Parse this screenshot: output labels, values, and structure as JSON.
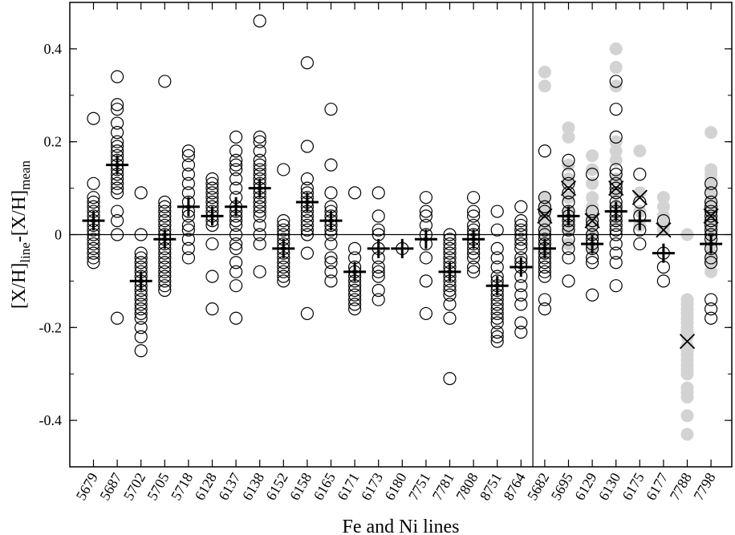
{
  "chart_data": {
    "type": "scatter",
    "xlabel": "Fe and Ni lines",
    "ylabel": {
      "main": "[X/H]",
      "sub1": "line",
      "mid": "-[X/H]",
      "sub2": "mean"
    },
    "ylim": [
      -0.5,
      0.5
    ],
    "yticks": [
      -0.4,
      -0.2,
      0,
      0.2,
      0.4
    ],
    "ytick_labels": [
      "-0.4",
      "-0.2",
      "0",
      "0.2",
      "0.4"
    ],
    "categories": [
      "5679",
      "5687",
      "5702",
      "5705",
      "5718",
      "6128",
      "6137",
      "6138",
      "6152",
      "6158",
      "6165",
      "6171",
      "6173",
      "6180",
      "7751",
      "7781",
      "7808",
      "8751",
      "8764",
      "5682",
      "5695",
      "6129",
      "6130",
      "6175",
      "6177",
      "7788",
      "7798"
    ],
    "separator_after_index": 18,
    "horizontal_zero_line": true,
    "colors": {
      "open_circle": "#000000",
      "grey_dot": "#d3d3d3",
      "mean_cross": "#000000",
      "x_marker": "#000000"
    },
    "series": [
      {
        "marker": "open-circle",
        "points": [
          [
            0,
            [
              0.25,
              0.11,
              0.08,
              0.07,
              0.06,
              0.05,
              0.04,
              0.03,
              0.02,
              0.01,
              0.0,
              -0.01,
              -0.02,
              -0.03,
              -0.04,
              -0.05,
              -0.06
            ]
          ],
          [
            1,
            [
              0.34,
              0.28,
              0.27,
              0.24,
              0.22,
              0.2,
              0.19,
              0.18,
              0.17,
              0.16,
              0.15,
              0.14,
              0.13,
              0.12,
              0.11,
              0.1,
              0.09,
              0.05,
              0.03,
              0.0,
              -0.18
            ]
          ],
          [
            2,
            [
              0.09,
              0.0,
              -0.04,
              -0.05,
              -0.06,
              -0.07,
              -0.08,
              -0.09,
              -0.1,
              -0.11,
              -0.12,
              -0.13,
              -0.14,
              -0.15,
              -0.16,
              -0.17,
              -0.18,
              -0.2,
              -0.22,
              -0.25
            ]
          ],
          [
            3,
            [
              0.33,
              0.07,
              0.06,
              0.05,
              0.04,
              0.03,
              0.02,
              0.01,
              0.0,
              -0.01,
              -0.02,
              -0.03,
              -0.04,
              -0.05,
              -0.06,
              -0.07,
              -0.08,
              -0.09,
              -0.1,
              -0.11,
              -0.12
            ]
          ],
          [
            4,
            [
              0.18,
              0.17,
              0.15,
              0.13,
              0.11,
              0.09,
              0.07,
              0.05,
              0.04,
              0.02,
              0.01,
              -0.01,
              -0.03,
              -0.05
            ]
          ],
          [
            5,
            [
              0.12,
              0.11,
              0.1,
              0.09,
              0.08,
              0.07,
              0.06,
              0.05,
              0.04,
              0.03,
              0.02,
              -0.02,
              -0.09,
              -0.16
            ]
          ],
          [
            6,
            [
              0.21,
              0.18,
              0.16,
              0.15,
              0.14,
              0.12,
              0.1,
              0.08,
              0.06,
              0.05,
              0.04,
              0.03,
              0.02,
              0.0,
              -0.02,
              -0.03,
              -0.06,
              -0.08,
              -0.11,
              -0.18
            ]
          ],
          [
            7,
            [
              0.46,
              0.21,
              0.2,
              0.18,
              0.16,
              0.15,
              0.14,
              0.13,
              0.12,
              0.11,
              0.1,
              0.09,
              0.08,
              0.07,
              0.06,
              0.05,
              0.04,
              0.02,
              0.0,
              -0.02,
              -0.08
            ]
          ],
          [
            8,
            [
              0.14,
              0.03,
              0.02,
              0.01,
              0.0,
              -0.01,
              -0.02,
              -0.03,
              -0.04,
              -0.05,
              -0.06,
              -0.07,
              -0.08,
              -0.09,
              -0.1
            ]
          ],
          [
            9,
            [
              0.37,
              0.19,
              0.12,
              0.1,
              0.09,
              0.08,
              0.07,
              0.06,
              0.05,
              0.04,
              0.03,
              0.02,
              0.01,
              0.0,
              -0.04,
              -0.17
            ]
          ],
          [
            10,
            [
              0.27,
              0.15,
              0.09,
              0.06,
              0.05,
              0.04,
              0.03,
              0.02,
              0.01,
              0.0,
              -0.02,
              -0.05,
              -0.06,
              -0.08,
              -0.1
            ]
          ],
          [
            11,
            [
              0.09,
              -0.03,
              -0.05,
              -0.07,
              -0.08,
              -0.09,
              -0.1,
              -0.11,
              -0.12,
              -0.13,
              -0.14,
              -0.15,
              -0.16
            ]
          ],
          [
            12,
            [
              0.09,
              0.04,
              0.01,
              0.0,
              -0.03,
              -0.05,
              -0.07,
              -0.08,
              -0.09,
              -0.12,
              -0.14
            ]
          ],
          [
            13,
            [
              -0.03
            ]
          ],
          [
            14,
            [
              0.08,
              0.05,
              0.04,
              0.02,
              0.0,
              -0.02,
              -0.05,
              -0.1,
              -0.17
            ]
          ],
          [
            15,
            [
              0.0,
              -0.01,
              -0.02,
              -0.03,
              -0.04,
              -0.05,
              -0.06,
              -0.07,
              -0.08,
              -0.09,
              -0.1,
              -0.11,
              -0.12,
              -0.13,
              -0.15,
              -0.18,
              -0.31
            ]
          ],
          [
            16,
            [
              0.08,
              0.05,
              0.04,
              0.02,
              0.01,
              0.0,
              -0.01,
              -0.02,
              -0.03,
              -0.04,
              -0.05,
              -0.07,
              -0.08
            ]
          ],
          [
            17,
            [
              0.05,
              0.01,
              -0.03,
              -0.05,
              -0.07,
              -0.09,
              -0.1,
              -0.11,
              -0.12,
              -0.13,
              -0.14,
              -0.15,
              -0.16,
              -0.17,
              -0.18,
              -0.19,
              -0.21,
              -0.22,
              -0.23
            ]
          ],
          [
            18,
            [
              0.06,
              0.03,
              0.02,
              0.01,
              0.0,
              -0.01,
              -0.02,
              -0.03,
              -0.05,
              -0.06,
              -0.07,
              -0.09,
              -0.11,
              -0.13,
              -0.15,
              -0.19,
              -0.21
            ]
          ],
          [
            19,
            [
              0.18,
              0.08,
              0.06,
              0.05,
              0.03,
              0.01,
              0.0,
              -0.01,
              -0.02,
              -0.03,
              -0.04,
              -0.05,
              -0.06,
              -0.07,
              -0.08,
              -0.09,
              -0.14,
              -0.16
            ]
          ],
          [
            20,
            [
              0.16,
              0.13,
              0.11,
              0.09,
              0.07,
              0.05,
              0.04,
              0.03,
              0.02,
              0.01,
              -0.01,
              -0.03,
              -0.05,
              -0.1
            ]
          ],
          [
            21,
            [
              0.13,
              0.05,
              0.03,
              0.02,
              0.0,
              -0.01,
              -0.02,
              -0.03,
              -0.05,
              -0.06,
              -0.13
            ]
          ],
          [
            22,
            [
              0.33,
              0.27,
              0.21,
              0.14,
              0.13,
              0.11,
              0.1,
              0.09,
              0.07,
              0.06,
              0.05,
              0.04,
              0.03,
              0.02,
              0.01,
              0.0,
              -0.02,
              -0.04,
              -0.06,
              -0.11
            ]
          ],
          [
            23,
            [
              0.13,
              0.07,
              0.04,
              0.01,
              -0.02
            ]
          ],
          [
            24,
            [
              0.03,
              -0.04,
              -0.07,
              -0.1
            ]
          ],
          [
            26,
            [
              0.11,
              0.09,
              0.07,
              0.06,
              0.05,
              0.04,
              0.03,
              0.02,
              0.01,
              0.0,
              -0.01,
              -0.03,
              -0.05,
              -0.06,
              -0.14,
              -0.16,
              -0.18
            ]
          ]
        ]
      },
      {
        "marker": "grey-dot",
        "points": [
          [
            19,
            [
              0.35,
              0.32,
              0.08,
              0.06,
              0.04,
              0.02,
              0.0,
              -0.02,
              -0.04
            ]
          ],
          [
            20,
            [
              0.23,
              0.21,
              0.15,
              0.12,
              0.08,
              0.05,
              0.03,
              0.01,
              -0.02
            ]
          ],
          [
            21,
            [
              0.17,
              0.14,
              0.11,
              0.08,
              0.06,
              0.04,
              0.02,
              0.0,
              -0.03
            ]
          ],
          [
            22,
            [
              0.4,
              0.36,
              0.32,
              0.2,
              0.18,
              0.16,
              0.12,
              0.09,
              0.06,
              0.03
            ]
          ],
          [
            23,
            [
              0.18,
              0.09,
              0.05,
              0.02
            ]
          ],
          [
            24,
            [
              0.08,
              0.06,
              0.04,
              0.02,
              0.01
            ]
          ],
          [
            25,
            [
              0.0,
              -0.14,
              -0.15,
              -0.16,
              -0.17,
              -0.18,
              -0.19,
              -0.2,
              -0.21,
              -0.22,
              -0.24,
              -0.25,
              -0.26,
              -0.27,
              -0.28,
              -0.29,
              -0.3,
              -0.33,
              -0.34,
              -0.35,
              -0.39,
              -0.43
            ]
          ],
          [
            26,
            [
              0.22,
              0.14,
              0.13,
              0.12,
              0.1,
              0.08,
              0.07,
              0.06,
              0.05,
              0.03,
              0.02,
              0.0,
              -0.02,
              -0.04,
              -0.06,
              -0.08
            ]
          ]
        ]
      },
      {
        "marker": "mean-cross",
        "values": [
          0.03,
          0.15,
          -0.1,
          -0.01,
          0.06,
          0.04,
          0.06,
          0.1,
          -0.03,
          0.07,
          0.03,
          -0.08,
          -0.03,
          -0.03,
          -0.01,
          -0.08,
          -0.01,
          -0.11,
          -0.07,
          -0.03,
          0.04,
          -0.02,
          0.05,
          0.03,
          -0.04,
          null,
          -0.02
        ]
      },
      {
        "marker": "x",
        "values": [
          null,
          null,
          null,
          null,
          null,
          null,
          null,
          null,
          null,
          null,
          null,
          null,
          null,
          null,
          null,
          null,
          null,
          null,
          null,
          0.04,
          0.1,
          0.03,
          0.1,
          0.08,
          0.01,
          -0.23,
          0.04
        ]
      }
    ]
  }
}
